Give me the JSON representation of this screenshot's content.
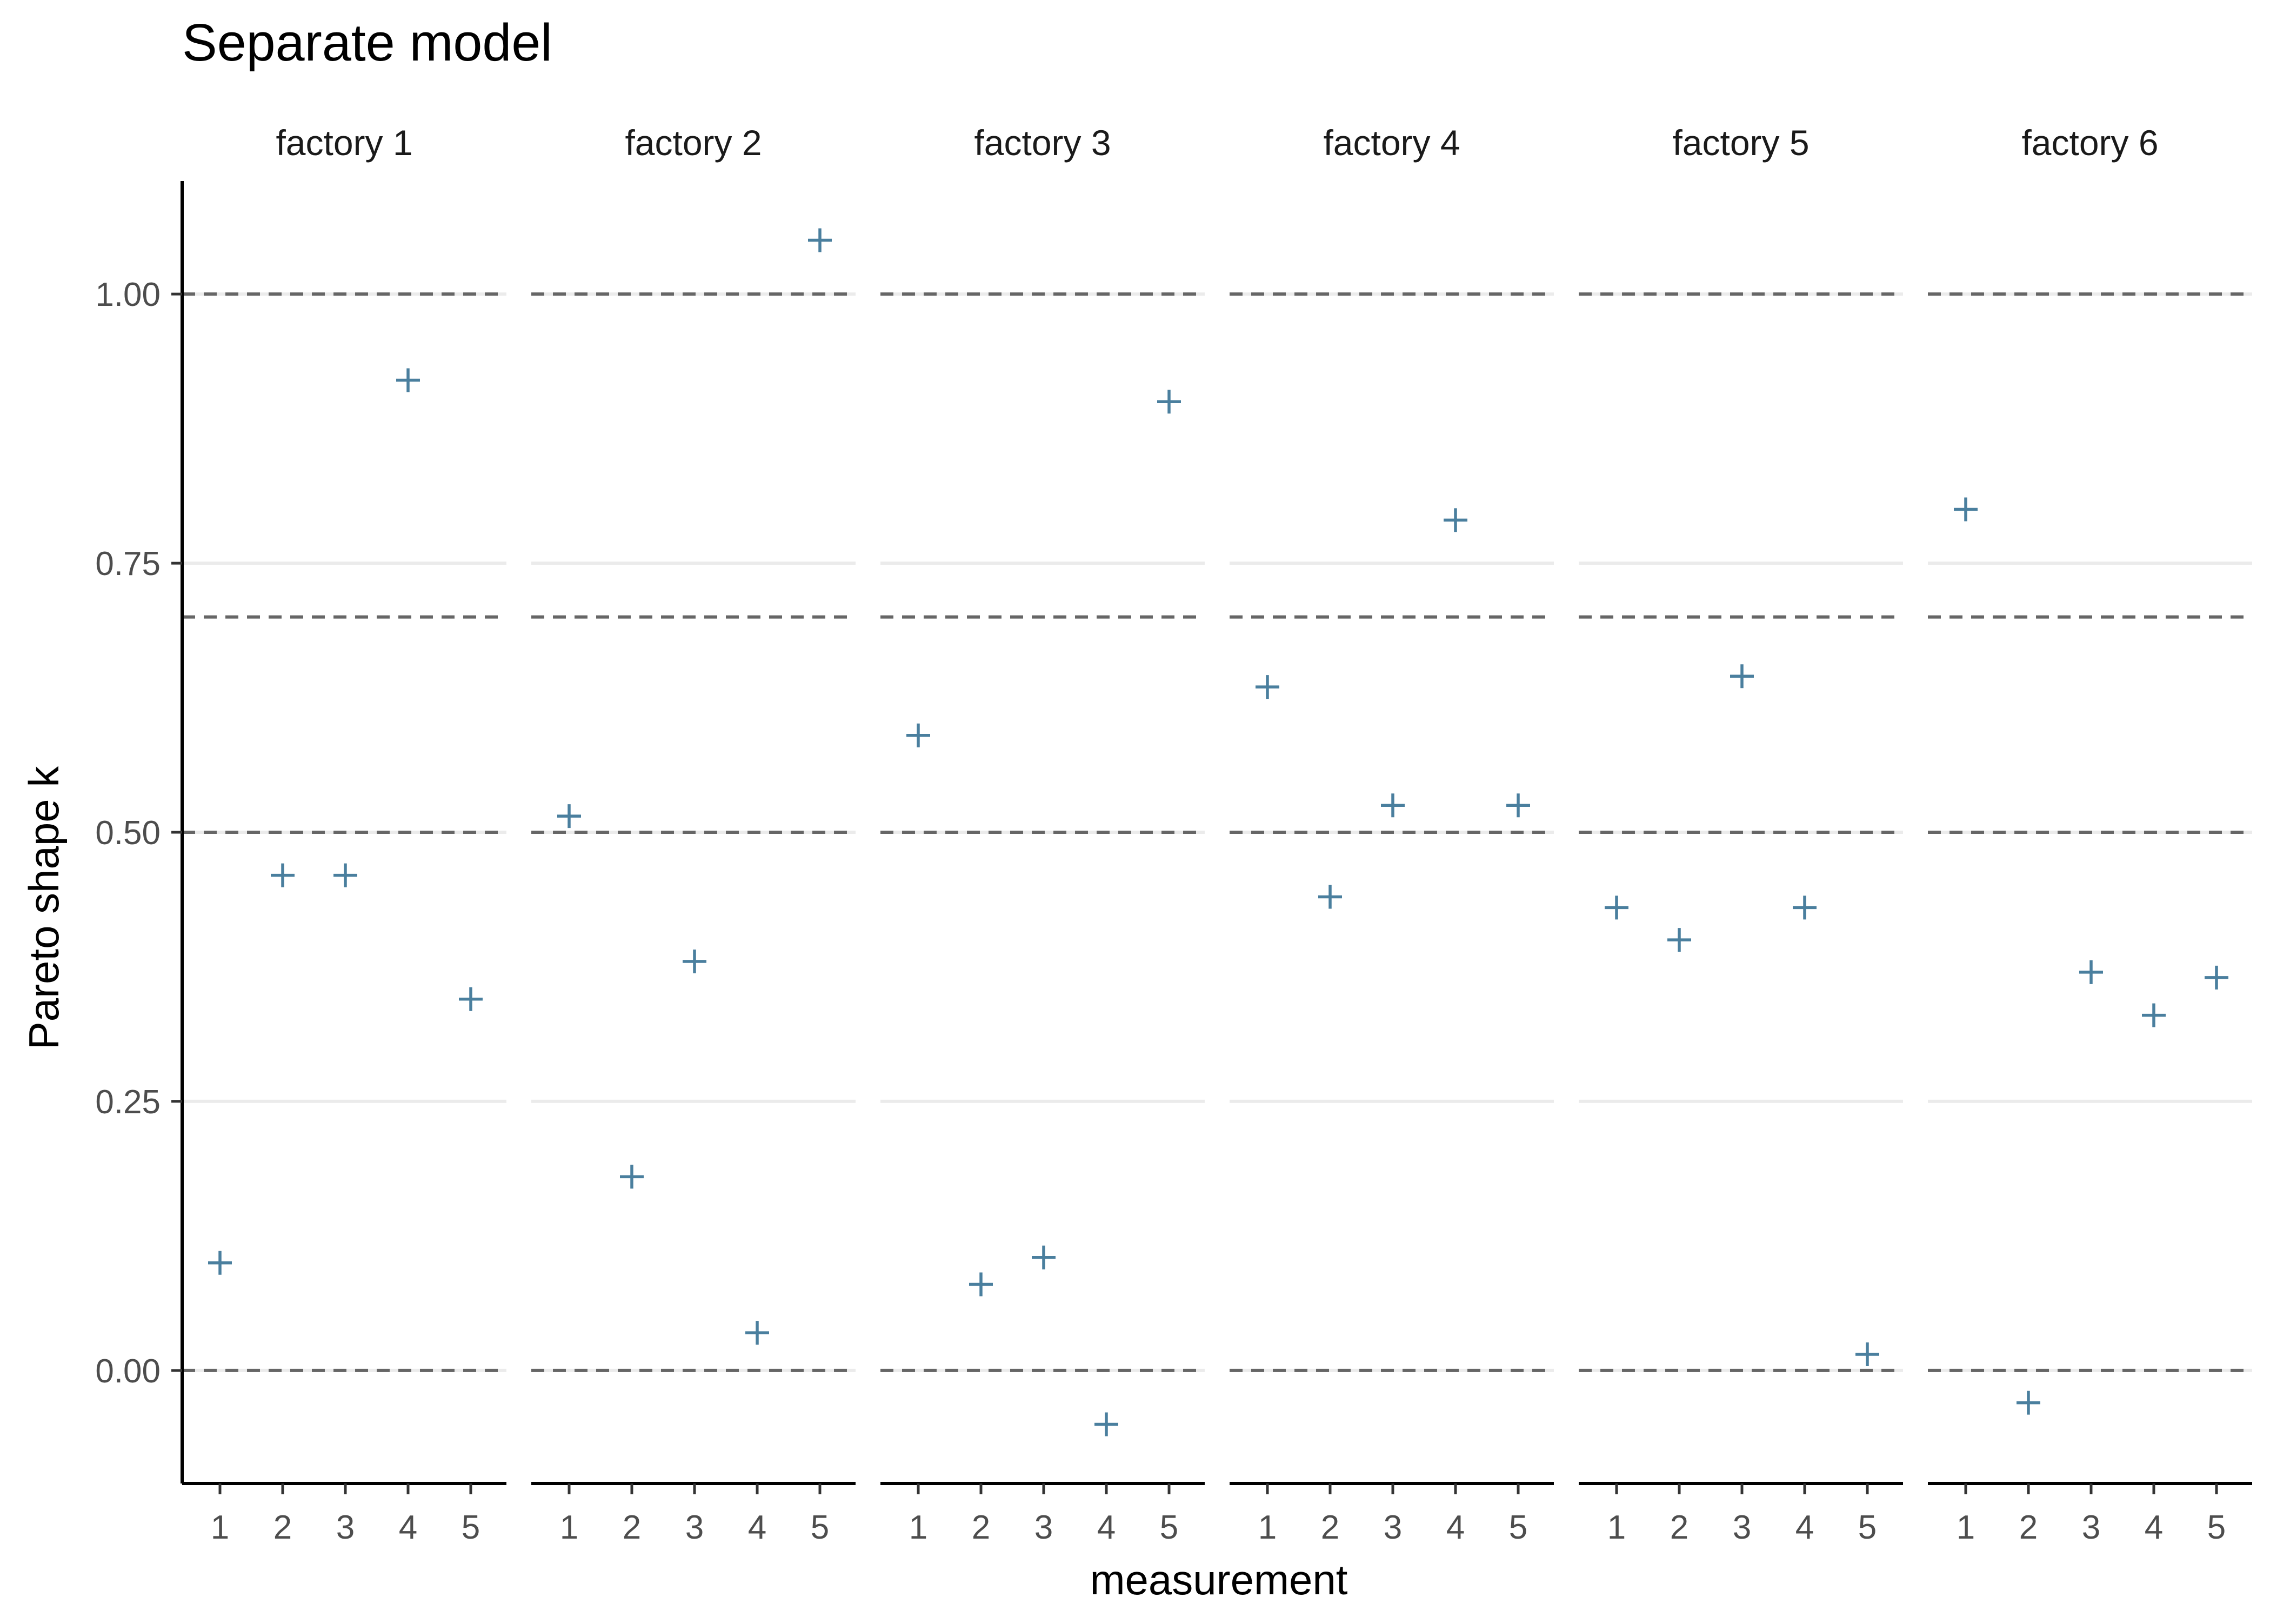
{
  "chart_data": {
    "type": "scatter",
    "title": "Separate model",
    "xlabel": "measurement",
    "ylabel": "Pareto shape k",
    "facets": [
      "factory 1",
      "factory 2",
      "factory 3",
      "factory 4",
      "factory 5",
      "factory 6"
    ],
    "x_categories": [
      "1",
      "2",
      "3",
      "4",
      "5"
    ],
    "ylim": [
      -0.105,
      1.105
    ],
    "yticks": [
      0.0,
      0.25,
      0.5,
      0.75,
      1.0
    ],
    "ytick_labels": [
      "0.00",
      "0.25",
      "0.50",
      "0.75",
      "1.00"
    ],
    "reference_lines": [
      0.0,
      0.5,
      0.7,
      1.0
    ],
    "grid": true,
    "marker": "plus",
    "marker_color": "#4a7f9e",
    "values": [
      [
        0.1,
        0.46,
        0.46,
        0.92,
        0.345
      ],
      [
        0.515,
        0.18,
        0.38,
        0.035,
        1.05
      ],
      [
        0.59,
        0.08,
        0.105,
        -0.05,
        0.9
      ],
      [
        0.635,
        0.44,
        0.525,
        0.79,
        0.525
      ],
      [
        0.43,
        0.4,
        0.645,
        0.43,
        0.015
      ],
      [
        0.8,
        -0.03,
        0.37,
        0.33,
        0.365
      ]
    ]
  }
}
